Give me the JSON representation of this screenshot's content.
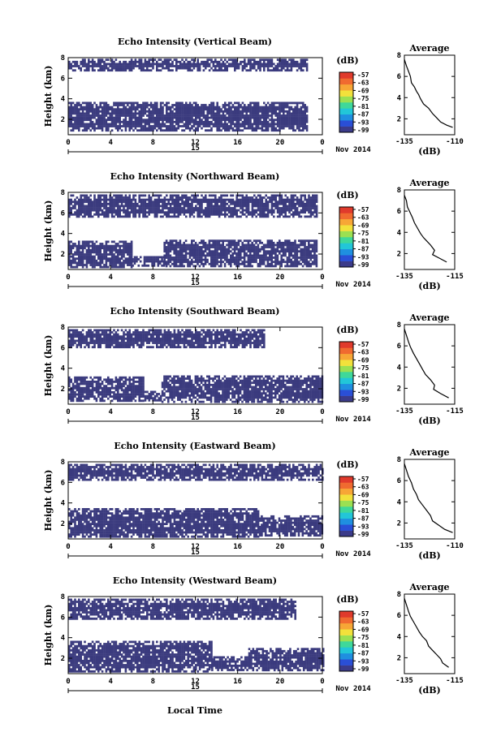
{
  "figure": {
    "xlabel": "Local Time",
    "date_label": "15",
    "month_label": "Nov 2014"
  },
  "colorbar": {
    "unit": "(dB)",
    "ticks": [
      "-57",
      "-63",
      "-69",
      "-75",
      "-81",
      "-87",
      "-93",
      "-99"
    ],
    "colors": [
      "#3b3b8a",
      "#2a4fd6",
      "#1f8fe0",
      "#22c6d8",
      "#3fd89a",
      "#9be052",
      "#f2e13b",
      "#f7a636",
      "#f06a30",
      "#e03a2c"
    ]
  },
  "colors": {
    "echo_fill": "#3b3b7e",
    "line": "#000000"
  },
  "chart_data": [
    {
      "type": "heatmap",
      "title": "Echo Intensity (Vertical Beam)",
      "ylabel": "Height (km)",
      "x_ticks": [
        "0",
        "4",
        "8",
        "12",
        "16",
        "20",
        "0"
      ],
      "xlim": [
        0,
        24
      ],
      "y_ticks": [
        "2",
        "4",
        "6",
        "8"
      ],
      "ylim": [
        0.5,
        8
      ],
      "regions": [
        {
          "t0": 0,
          "t1": 22.5,
          "h0": 6.7,
          "h1": 7.9
        },
        {
          "t0": 0,
          "t1": 22.5,
          "h0": 0.9,
          "h1": 3.7
        }
      ],
      "profile": {
        "title": "Average",
        "xlabel": "(dB)",
        "x_ticks": [
          "-135",
          "-110"
        ],
        "xlim": [
          -135,
          -110
        ],
        "y_ticks": [
          "2",
          "4",
          "6",
          "8"
        ],
        "ylim": [
          0.5,
          8
        ],
        "points": [
          [
            -135,
            7.6
          ],
          [
            -134,
            7.0
          ],
          [
            -133,
            6.5
          ],
          [
            -132,
            6.0
          ],
          [
            -131.5,
            5.4
          ],
          [
            -130,
            5.0
          ],
          [
            -129,
            4.6
          ],
          [
            -128,
            4.3
          ],
          [
            -127,
            3.9
          ],
          [
            -125.5,
            3.4
          ],
          [
            -123,
            3.0
          ],
          [
            -121,
            2.5
          ],
          [
            -119,
            2.1
          ],
          [
            -117,
            1.7
          ],
          [
            -114,
            1.4
          ],
          [
            -111,
            1.2
          ]
        ]
      }
    },
    {
      "type": "heatmap",
      "title": "Echo Intensity (Northward Beam)",
      "ylabel": "Height (km)",
      "x_ticks": [
        "0",
        "4",
        "8",
        "12",
        "16",
        "20",
        "0"
      ],
      "xlim": [
        0,
        24
      ],
      "y_ticks": [
        "2",
        "4",
        "6",
        "8"
      ],
      "ylim": [
        0.5,
        8
      ],
      "regions": [
        {
          "t0": 0,
          "t1": 23.5,
          "h0": 5.6,
          "h1": 7.8
        },
        {
          "t0": 0,
          "t1": 6,
          "h0": 0.8,
          "h1": 3.3
        },
        {
          "t0": 6,
          "t1": 9,
          "h0": 0.8,
          "h1": 1.8
        },
        {
          "t0": 9,
          "t1": 23.5,
          "h0": 0.8,
          "h1": 3.4
        }
      ],
      "profile": {
        "title": "Average",
        "xlabel": "(dB)",
        "x_ticks": [
          "-135",
          "-115"
        ],
        "xlim": [
          -135,
          -110
        ],
        "y_ticks": [
          "2",
          "4",
          "6",
          "8"
        ],
        "ylim": [
          0.5,
          8
        ],
        "points": [
          [
            -135,
            7.5
          ],
          [
            -134,
            7.0
          ],
          [
            -133.5,
            6.4
          ],
          [
            -132.5,
            6.0
          ],
          [
            -131,
            5.4
          ],
          [
            -130,
            4.9
          ],
          [
            -128.5,
            4.4
          ],
          [
            -127,
            3.9
          ],
          [
            -125.5,
            3.5
          ],
          [
            -124,
            3.2
          ],
          [
            -122,
            2.8
          ],
          [
            -120,
            2.3
          ],
          [
            -121,
            1.9
          ],
          [
            -118,
            1.6
          ],
          [
            -114,
            1.2
          ]
        ]
      }
    },
    {
      "type": "heatmap",
      "title": "Echo Intensity (Southward Beam)",
      "ylabel": "Height (km)",
      "x_ticks": [
        "0",
        "4",
        "8",
        "12",
        "16",
        "20",
        "0"
      ],
      "xlim": [
        0,
        24
      ],
      "y_ticks": [
        "2",
        "4",
        "6",
        "8"
      ],
      "ylim": [
        0.5,
        8
      ],
      "regions": [
        {
          "t0": 0,
          "t1": 18.5,
          "h0": 6.0,
          "h1": 7.8
        },
        {
          "t0": 0,
          "t1": 7,
          "h0": 0.8,
          "h1": 3.2
        },
        {
          "t0": 7,
          "t1": 8.8,
          "h0": 0.8,
          "h1": 1.8
        },
        {
          "t0": 8.8,
          "t1": 24,
          "h0": 0.8,
          "h1": 3.3
        }
      ],
      "profile": {
        "title": "Average",
        "xlabel": "(dB)",
        "x_ticks": [
          "-135",
          "-115"
        ],
        "xlim": [
          -135,
          -110
        ],
        "y_ticks": [
          "2",
          "4",
          "6",
          "8"
        ],
        "ylim": [
          0.5,
          8
        ],
        "points": [
          [
            -135,
            7.6
          ],
          [
            -134,
            7.0
          ],
          [
            -133,
            6.4
          ],
          [
            -132,
            5.9
          ],
          [
            -130.5,
            5.3
          ],
          [
            -129,
            4.8
          ],
          [
            -127.5,
            4.3
          ],
          [
            -126,
            3.8
          ],
          [
            -124.5,
            3.3
          ],
          [
            -122,
            2.8
          ],
          [
            -120,
            2.3
          ],
          [
            -120.5,
            1.9
          ],
          [
            -117,
            1.5
          ],
          [
            -113,
            1.1
          ]
        ]
      }
    },
    {
      "type": "heatmap",
      "title": "Echo Intensity (Eastward Beam)",
      "ylabel": "Height (km)",
      "x_ticks": [
        "0",
        "4",
        "8",
        "12",
        "16",
        "20",
        "0"
      ],
      "xlim": [
        0,
        24
      ],
      "y_ticks": [
        "2",
        "4",
        "6",
        "8"
      ],
      "ylim": [
        0.5,
        8
      ],
      "regions": [
        {
          "t0": 0,
          "t1": 24,
          "h0": 6.2,
          "h1": 7.8
        },
        {
          "t0": 0,
          "t1": 18,
          "h0": 0.8,
          "h1": 3.5
        },
        {
          "t0": 18,
          "t1": 24,
          "h0": 0.8,
          "h1": 2.8
        }
      ],
      "profile": {
        "title": "Average",
        "xlabel": "(dB)",
        "x_ticks": [
          "-135",
          "-110"
        ],
        "xlim": [
          -135,
          -110
        ],
        "y_ticks": [
          "2",
          "4",
          "6",
          "8"
        ],
        "ylim": [
          0.5,
          8
        ],
        "points": [
          [
            -135,
            7.6
          ],
          [
            -134,
            7.0
          ],
          [
            -133,
            6.4
          ],
          [
            -131.5,
            5.8
          ],
          [
            -130.5,
            5.2
          ],
          [
            -129,
            4.7
          ],
          [
            -128,
            4.2
          ],
          [
            -126,
            3.7
          ],
          [
            -124,
            3.2
          ],
          [
            -122,
            2.7
          ],
          [
            -121,
            2.2
          ],
          [
            -118,
            1.8
          ],
          [
            -115,
            1.4
          ],
          [
            -111,
            1.1
          ]
        ]
      }
    },
    {
      "type": "heatmap",
      "title": "Echo Intensity (Westward Beam)",
      "ylabel": "Height (km)",
      "x_ticks": [
        "0",
        "4",
        "8",
        "12",
        "16",
        "20",
        "0"
      ],
      "xlim": [
        0,
        24
      ],
      "y_ticks": [
        "2",
        "4",
        "6",
        "8"
      ],
      "ylim": [
        0.5,
        8
      ],
      "regions": [
        {
          "t0": 0,
          "t1": 21.5,
          "h0": 5.8,
          "h1": 7.8
        },
        {
          "t0": 0,
          "t1": 13.5,
          "h0": 0.8,
          "h1": 3.7
        },
        {
          "t0": 13.5,
          "t1": 17,
          "h0": 0.8,
          "h1": 2.2
        },
        {
          "t0": 17,
          "t1": 24,
          "h0": 0.8,
          "h1": 3.0
        }
      ],
      "profile": {
        "title": "Average",
        "xlabel": "(dB)",
        "x_ticks": [
          "-135",
          "-115"
        ],
        "xlim": [
          -135,
          -110
        ],
        "y_ticks": [
          "2",
          "4",
          "6",
          "8"
        ],
        "ylim": [
          0.5,
          8
        ],
        "points": [
          [
            -135,
            7.6
          ],
          [
            -134,
            7.0
          ],
          [
            -133,
            6.4
          ],
          [
            -132,
            5.9
          ],
          [
            -130.5,
            5.4
          ],
          [
            -129,
            4.9
          ],
          [
            -127.5,
            4.4
          ],
          [
            -126,
            4.0
          ],
          [
            -124,
            3.6
          ],
          [
            -123,
            3.1
          ],
          [
            -121,
            2.7
          ],
          [
            -119,
            2.3
          ],
          [
            -117,
            1.9
          ],
          [
            -116,
            1.5
          ],
          [
            -113,
            1.1
          ]
        ]
      }
    }
  ]
}
